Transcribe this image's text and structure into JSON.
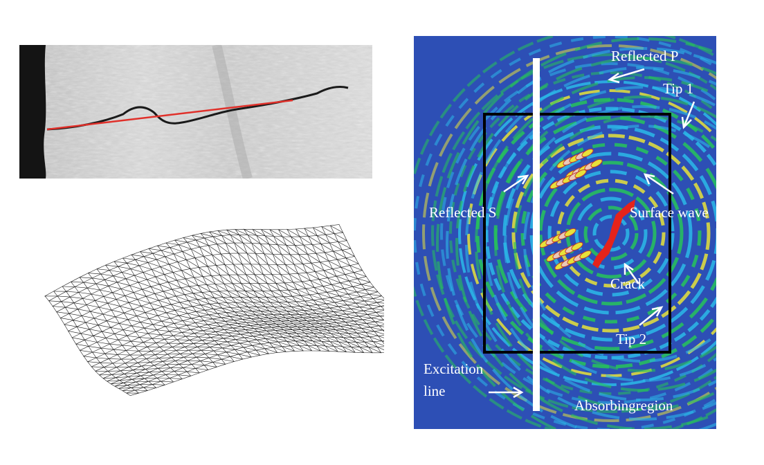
{
  "simulation": {
    "labels": {
      "reflected_p": "Reflected P",
      "tip1": "Tip 1",
      "reflected_s": "Reflected S",
      "surface_wave": "Surface wave",
      "crack": "Crack",
      "tip2": "Tip 2",
      "excitation_line_1": "Excitation",
      "excitation_line_2": "line",
      "absorbing_region": "Absorbingregion"
    },
    "colors": {
      "background": "#2d4fb5",
      "wave_cyan": "#2cb8e8",
      "wave_green": "#27c35a",
      "wave_yellow": "#e7e23a",
      "crack": "#e5231b",
      "excitation_line": "#ffffff",
      "box": "#000000"
    }
  },
  "micrograph": {
    "colors": {
      "crack_trace": "#e0302a",
      "dark_edge": "#111111"
    }
  }
}
